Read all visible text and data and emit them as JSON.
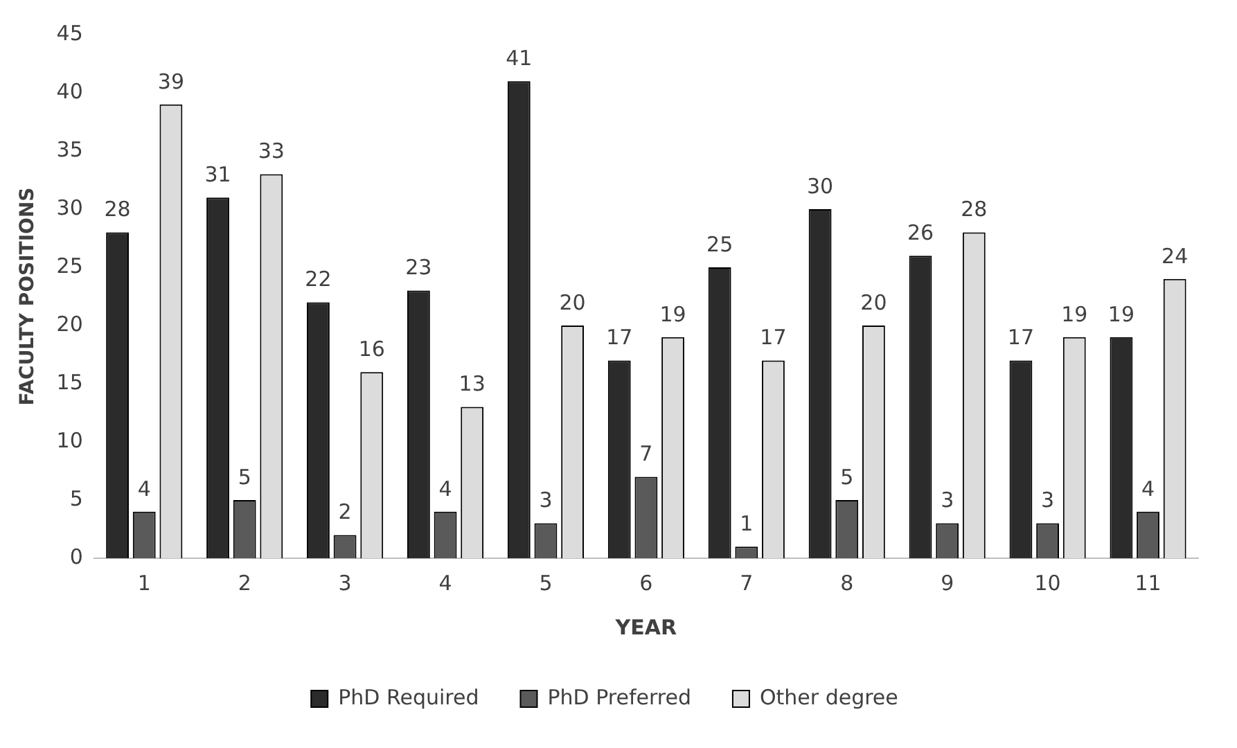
{
  "chart_data": {
    "type": "bar",
    "xlabel": "YEAR",
    "ylabel": "FACULTY POSITIONS",
    "categories": [
      "1",
      "2",
      "3",
      "4",
      "5",
      "6",
      "7",
      "8",
      "9",
      "10",
      "11"
    ],
    "series": [
      {
        "name": "PhD Required",
        "color": "#2b2b2b",
        "values": [
          28,
          31,
          22,
          23,
          41,
          17,
          25,
          30,
          26,
          17,
          19
        ]
      },
      {
        "name": "PhD Preferred",
        "color": "#5a5a5a",
        "values": [
          4,
          5,
          2,
          4,
          3,
          7,
          1,
          5,
          3,
          3,
          4
        ]
      },
      {
        "name": "Other degree",
        "color": "#dcdcdc",
        "values": [
          39,
          33,
          16,
          13,
          20,
          19,
          17,
          20,
          28,
          19,
          24
        ]
      }
    ],
    "ylim": [
      0,
      45
    ],
    "yticks": [
      0,
      5,
      10,
      15,
      20,
      25,
      30,
      35,
      40,
      45
    ],
    "grid": false,
    "legend": "bottom",
    "data_labels": true
  }
}
